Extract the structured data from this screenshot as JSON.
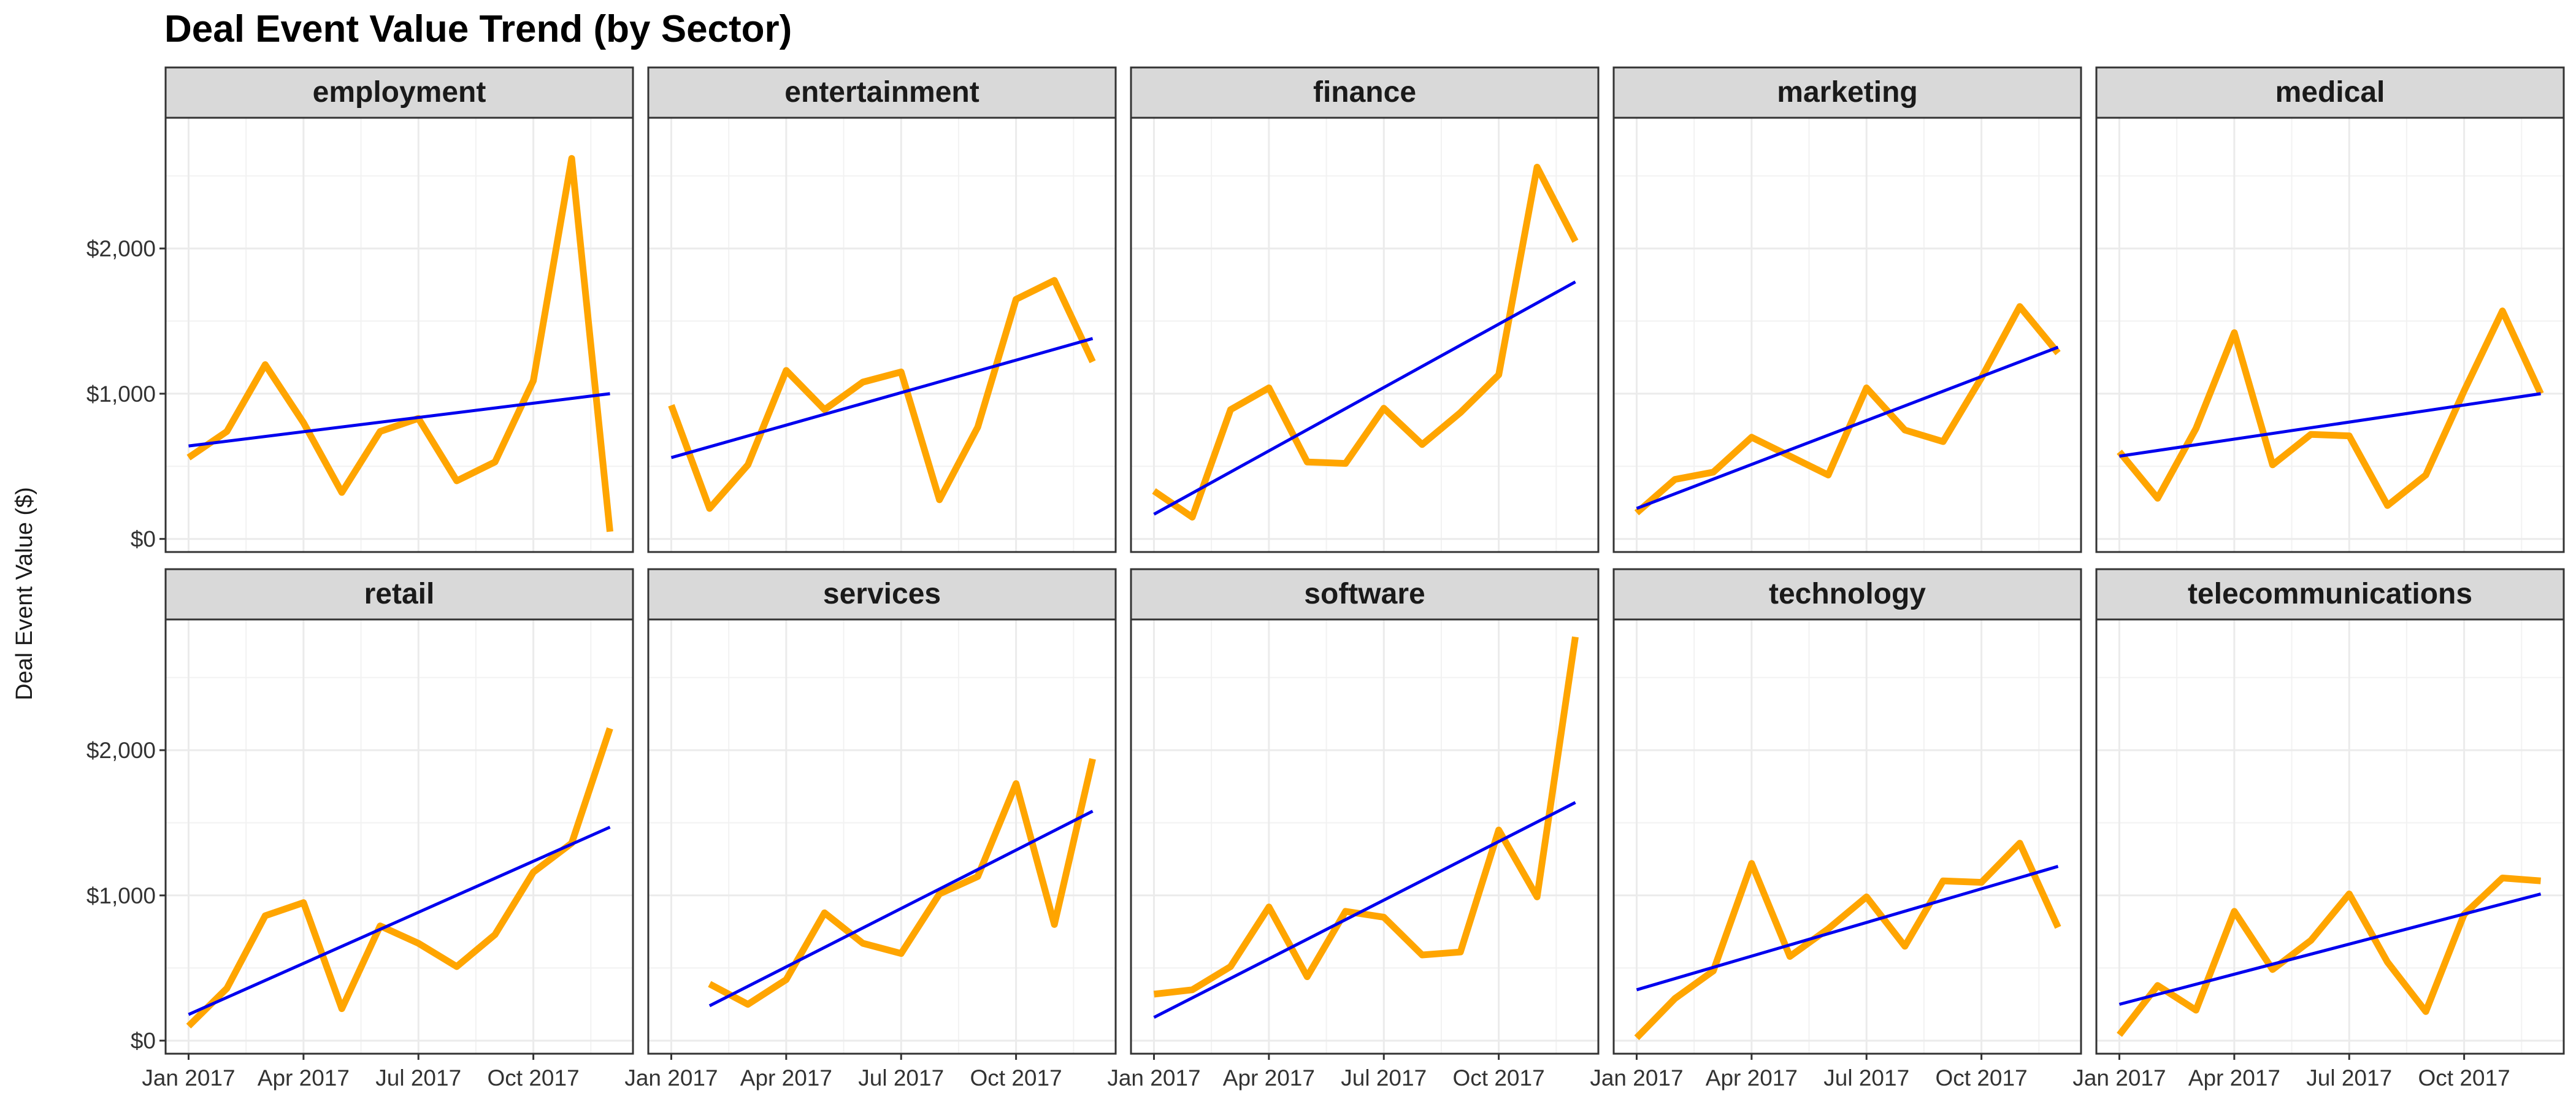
{
  "chart_data": {
    "type": "line",
    "title": "Deal Event Value Trend (by Sector)",
    "xlabel": "",
    "ylabel": "Deal Event Value ($)",
    "x": [
      "2017-01",
      "2017-02",
      "2017-03",
      "2017-04",
      "2017-05",
      "2017-06",
      "2017-07",
      "2017-08",
      "2017-09",
      "2017-10",
      "2017-11",
      "2017-12"
    ],
    "x_ticks": [
      "Jan 2017",
      "Apr 2017",
      "Jul 2017",
      "Oct 2017"
    ],
    "y_ticks": [
      "$0",
      "$1,000",
      "$2,000"
    ],
    "ylim": [
      -90,
      2900
    ],
    "grid": true,
    "colors": {
      "line": "#FFA500",
      "trend": "#0000EE",
      "strip": "#D9D9D9"
    },
    "facets": [
      {
        "name": "employment",
        "values": [
          560,
          740,
          1200,
          800,
          320,
          740,
          830,
          400,
          530,
          1090,
          2620,
          50
        ],
        "trend": [
          640,
          1000
        ]
      },
      {
        "name": "entertainment",
        "values": [
          920,
          210,
          510,
          1160,
          890,
          1080,
          1150,
          270,
          770,
          1650,
          1780,
          1220
        ],
        "trend": [
          560,
          1380
        ]
      },
      {
        "name": "finance",
        "values": [
          330,
          150,
          890,
          1040,
          530,
          520,
          900,
          650,
          870,
          1130,
          2560,
          2050
        ],
        "trend": [
          170,
          1770
        ]
      },
      {
        "name": "marketing",
        "values": [
          180,
          410,
          460,
          700,
          570,
          440,
          1040,
          750,
          670,
          1110,
          1600,
          1280
        ],
        "trend": [
          210,
          1320
        ]
      },
      {
        "name": "medical",
        "values": [
          600,
          280,
          760,
          1420,
          510,
          720,
          710,
          230,
          440,
          1020,
          1570,
          1000
        ],
        "trend": [
          570,
          1000
        ]
      },
      {
        "name": "retail",
        "values": [
          100,
          360,
          860,
          950,
          220,
          790,
          670,
          510,
          730,
          1160,
          1360,
          2150
        ],
        "trend": [
          180,
          1470
        ]
      },
      {
        "name": "services",
        "values": [
          390,
          250,
          420,
          880,
          670,
          600,
          1010,
          1130,
          1770,
          800,
          1940
        ],
        "x_offset": 1,
        "trend": [
          240,
          1580
        ]
      },
      {
        "name": "software",
        "values": [
          320,
          350,
          510,
          920,
          440,
          890,
          850,
          590,
          610,
          1450,
          990,
          2780
        ],
        "trend": [
          160,
          1640
        ]
      },
      {
        "name": "technology",
        "values": [
          20,
          290,
          480,
          1220,
          580,
          770,
          990,
          650,
          1100,
          1090,
          1360,
          780
        ],
        "trend": [
          350,
          1200
        ]
      },
      {
        "name": "telecommunications",
        "values": [
          40,
          380,
          210,
          890,
          490,
          690,
          1010,
          540,
          200,
          870,
          1120,
          1100
        ],
        "trend": [
          250,
          1010
        ]
      }
    ]
  }
}
